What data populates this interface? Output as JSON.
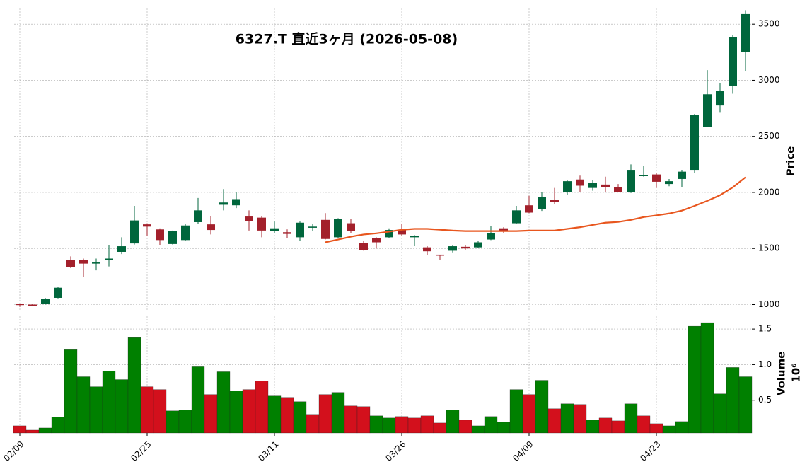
{
  "chart_data": {
    "type": "candlestick",
    "title": "6327.T  直近3ヶ月  (2026-05-08)",
    "x": [
      "02/09",
      null,
      null,
      null,
      null,
      null,
      null,
      null,
      null,
      null,
      "02/25",
      null,
      null,
      null,
      null,
      null,
      null,
      null,
      null,
      null,
      "03/11",
      null,
      null,
      null,
      null,
      null,
      null,
      null,
      null,
      null,
      "03/26",
      null,
      null,
      null,
      null,
      null,
      null,
      null,
      null,
      null,
      "04/09",
      null,
      null,
      null,
      null,
      null,
      null,
      null,
      null,
      null,
      "04/23",
      null,
      null,
      null,
      null,
      null,
      null,
      null
    ],
    "open": [
      1005,
      1000,
      1005,
      1060,
      1400,
      1395,
      1365,
      1395,
      1470,
      1545,
      1715,
      1670,
      1540,
      1575,
      1735,
      1715,
      1890,
      1885,
      1785,
      1775,
      1655,
      1645,
      1600,
      1685,
      1755,
      1600,
      1725,
      1550,
      1595,
      1600,
      1665,
      1600,
      1510,
      1445,
      1480,
      1515,
      1510,
      1580,
      1680,
      1725,
      1885,
      1850,
      1935,
      2000,
      2115,
      2040,
      2070,
      2045,
      2000,
      2145,
      2160,
      2075,
      2120,
      2195,
      2585,
      2775,
      2950,
      3250
    ],
    "high": [
      1010,
      1005,
      1060,
      1155,
      1430,
      1410,
      1410,
      1530,
      1600,
      1880,
      1725,
      1680,
      1660,
      1720,
      1950,
      1785,
      2030,
      2000,
      1840,
      1790,
      1740,
      1670,
      1740,
      1720,
      1815,
      1770,
      1760,
      1565,
      1600,
      1680,
      1720,
      1620,
      1520,
      1445,
      1530,
      1530,
      1565,
      1700,
      1690,
      1880,
      1970,
      2000,
      2040,
      2110,
      2150,
      2110,
      2140,
      2075,
      2250,
      2235,
      2170,
      2120,
      2200,
      2700,
      3090,
      2975,
      3400,
      3625
    ],
    "low": [
      980,
      985,
      1000,
      1055,
      1325,
      1245,
      1305,
      1340,
      1450,
      1535,
      1610,
      1530,
      1535,
      1565,
      1720,
      1625,
      1840,
      1860,
      1660,
      1600,
      1640,
      1595,
      1570,
      1655,
      1580,
      1590,
      1640,
      1480,
      1500,
      1590,
      1615,
      1520,
      1440,
      1400,
      1465,
      1490,
      1505,
      1575,
      1640,
      1720,
      1815,
      1835,
      1895,
      1975,
      2000,
      2015,
      2000,
      2000,
      1995,
      2140,
      2040,
      2055,
      2050,
      2170,
      2580,
      2710,
      2880,
      3080
    ],
    "close": [
      1000,
      995,
      1050,
      1150,
      1335,
      1365,
      1375,
      1410,
      1520,
      1750,
      1695,
      1575,
      1655,
      1705,
      1840,
      1665,
      1910,
      1940,
      1745,
      1660,
      1680,
      1630,
      1730,
      1695,
      1585,
      1765,
      1655,
      1485,
      1555,
      1665,
      1625,
      1610,
      1475,
      1440,
      1520,
      1500,
      1555,
      1640,
      1655,
      1840,
      1820,
      1960,
      1915,
      2100,
      2060,
      2085,
      2045,
      2000,
      2195,
      2155,
      2095,
      2100,
      2185,
      2690,
      2875,
      2905,
      3385,
      3590
    ],
    "volume": [
      0.14,
      0.08,
      0.11,
      0.26,
      1.21,
      0.83,
      0.69,
      0.91,
      0.79,
      1.38,
      0.69,
      0.65,
      0.35,
      0.36,
      0.97,
      0.58,
      0.9,
      0.63,
      0.65,
      0.77,
      0.56,
      0.54,
      0.48,
      0.3,
      0.58,
      0.61,
      0.42,
      0.41,
      0.28,
      0.25,
      0.27,
      0.25,
      0.28,
      0.18,
      0.36,
      0.22,
      0.14,
      0.27,
      0.19,
      0.65,
      0.58,
      0.78,
      0.38,
      0.45,
      0.44,
      0.22,
      0.25,
      0.21,
      0.45,
      0.28,
      0.17,
      0.14,
      0.2,
      1.54,
      1.59,
      0.59,
      0.96,
      0.83
    ],
    "ma": [
      null,
      null,
      null,
      null,
      null,
      null,
      null,
      null,
      null,
      null,
      null,
      null,
      null,
      null,
      null,
      null,
      null,
      null,
      null,
      null,
      null,
      null,
      null,
      null,
      1555,
      1580,
      1605,
      1625,
      1635,
      1650,
      1667,
      1675,
      1675,
      1668,
      1660,
      1655,
      1655,
      1655,
      1655,
      1655,
      1660,
      1660,
      1660,
      1675,
      1690,
      1710,
      1730,
      1737,
      1755,
      1780,
      1795,
      1812,
      1838,
      1880,
      1925,
      1975,
      2045,
      2135
    ],
    "ma_color": "#e8561e",
    "up_color": "#00663c",
    "down_color": "#a3202b",
    "volume_up_color": "#008000",
    "volume_down_color": "#d3101c",
    "ylabel": "Price",
    "volume_label": "Volume",
    "volume_scale": "10⁶",
    "ylim": [
      940,
      3640
    ],
    "yticks": [
      1000,
      1500,
      2000,
      2500,
      3000,
      3500
    ],
    "volume_ylim": [
      0.04,
      1.68
    ],
    "volume_yticks": [
      0.5,
      {
        "value": 1,
        "label": "1.0"
      },
      1.5
    ],
    "grid": true
  }
}
